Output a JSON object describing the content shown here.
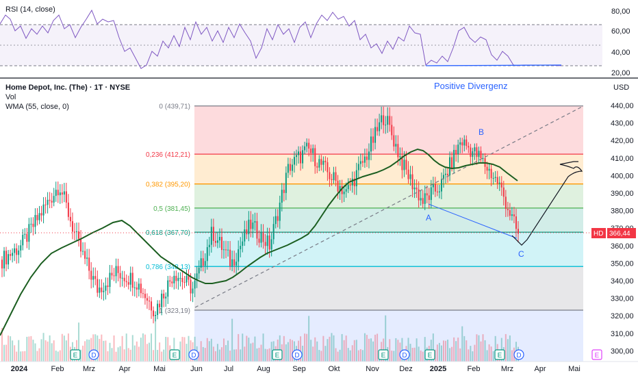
{
  "header": {
    "symbol_title": "Home Depot, Inc. (The) · 1T · NYSE",
    "volume_label": "Vol",
    "wma_label": "WMA (55, close, 0)"
  },
  "rsi_panel": {
    "title": "RSI (14, close)",
    "ticks": [
      "80,00",
      "60,00",
      "40,00",
      "20,00"
    ]
  },
  "price_axis": {
    "currency": "USD",
    "ticks": [
      "440,00",
      "430,00",
      "420,00",
      "410,00",
      "400,00",
      "390,00",
      "380,00",
      "370,00",
      "360,00",
      "350,00",
      "340,00",
      "330,00",
      "320,00",
      "310,00",
      "300,00"
    ]
  },
  "current_price": {
    "symbol": "HD",
    "value": "366,44"
  },
  "annotations": {
    "divergence_title": "Positive Divergenz",
    "point_a": "A",
    "point_b": "B",
    "point_c": "C"
  },
  "time_axis": [
    "2024",
    "Feb",
    "Mrz",
    "Apr",
    "Mai",
    "Jun",
    "Jul",
    "Aug",
    "Sep",
    "Okt",
    "Nov",
    "Dez",
    "2025",
    "Feb",
    "Mrz",
    "Apr",
    "Mai"
  ],
  "event_markers": {
    "earnings_letter": "E",
    "dividend_letter": "D"
  },
  "colors": {
    "up": "#089981",
    "down": "#f23645",
    "wma": "#1b5e20",
    "rsi": "#7e57c2",
    "annotation_blue": "#2962ff",
    "fib_0": "#787b86",
    "fib_0236": "#f23645",
    "fib_0382": "#ff9800",
    "fib_05": "#4caf50",
    "fib_0618": "#089981",
    "fib_0786": "#00bcd4",
    "fib_1": "#787b86"
  },
  "chart_data": {
    "type": "candlestick",
    "y_range": [
      295,
      445
    ],
    "fib_levels": [
      {
        "ratio": "0",
        "label": "0 (439,71)",
        "price": 439.71
      },
      {
        "ratio": "0.236",
        "label": "0,236 (412,21)",
        "price": 412.21
      },
      {
        "ratio": "0.382",
        "label": "0,382 (395,20)",
        "price": 395.2
      },
      {
        "ratio": "0.5",
        "label": "0,5 (381,45)",
        "price": 381.45
      },
      {
        "ratio": "0.618",
        "label": "0,618 (367,70)",
        "price": 367.7
      },
      {
        "ratio": "0.786",
        "label": "0,786 (348,13)",
        "price": 348.13
      },
      {
        "ratio": "1",
        "label": "1 (323,19)",
        "price": 323.19
      }
    ],
    "weekly_closes": [
      {
        "date": "2024-01",
        "price": 352
      },
      {
        "date": "2024-02",
        "price": 360
      },
      {
        "date": "2024-03",
        "price": 378
      },
      {
        "date": "2024-03-25",
        "price": 395
      },
      {
        "date": "2024-04",
        "price": 360
      },
      {
        "date": "2024-04-20",
        "price": 335
      },
      {
        "date": "2024-05",
        "price": 345
      },
      {
        "date": "2024-05-20",
        "price": 340
      },
      {
        "date": "2024-06",
        "price": 323
      },
      {
        "date": "2024-06-20",
        "price": 345
      },
      {
        "date": "2024-07",
        "price": 335
      },
      {
        "date": "2024-07-20",
        "price": 368
      },
      {
        "date": "2024-08",
        "price": 350
      },
      {
        "date": "2024-08-20",
        "price": 372
      },
      {
        "date": "2024-09",
        "price": 360
      },
      {
        "date": "2024-09-20",
        "price": 405
      },
      {
        "date": "2024-10",
        "price": 415
      },
      {
        "date": "2024-10-20",
        "price": 402
      },
      {
        "date": "2024-11",
        "price": 390
      },
      {
        "date": "2024-11-20",
        "price": 410
      },
      {
        "date": "2024-12",
        "price": 435
      },
      {
        "date": "2024-12-20",
        "price": 405
      },
      {
        "date": "2025-01",
        "price": 385
      },
      {
        "date": "2025-01-20",
        "price": 395
      },
      {
        "date": "2025-02",
        "price": 420
      },
      {
        "date": "2025-02-15",
        "price": 410
      },
      {
        "date": "2025-03",
        "price": 395
      },
      {
        "date": "2025-03-12",
        "price": 366
      }
    ],
    "current_value": 366.44,
    "rsi_range": [
      20,
      80
    ]
  }
}
